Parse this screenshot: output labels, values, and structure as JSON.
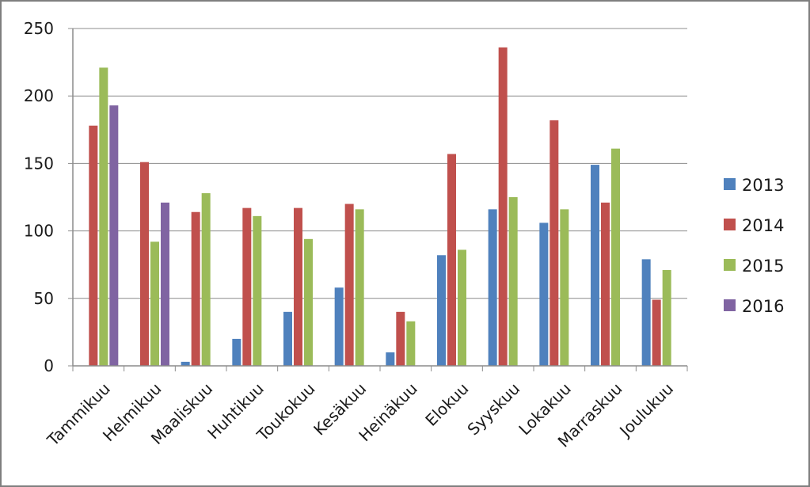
{
  "chart_data": {
    "type": "bar",
    "categories": [
      "Tammikuu",
      "Helmikuu",
      "Maaliskuu",
      "Huhtikuu",
      "Toukokuu",
      "Kesäkuu",
      "Heinäkuu",
      "Elokuu",
      "Syyskuu",
      "Lokakuu",
      "Marraskuu",
      "Joulukuu"
    ],
    "series": [
      {
        "name": "2013",
        "color": "#4f81bd",
        "values": [
          null,
          null,
          3,
          20,
          40,
          58,
          10,
          82,
          116,
          106,
          149,
          79
        ]
      },
      {
        "name": "2014",
        "color": "#c0504d",
        "values": [
          178,
          151,
          114,
          117,
          117,
          120,
          40,
          157,
          236,
          182,
          121,
          49
        ]
      },
      {
        "name": "2015",
        "color": "#9bbb59",
        "values": [
          221,
          92,
          128,
          111,
          94,
          116,
          33,
          86,
          125,
          116,
          161,
          71
        ]
      },
      {
        "name": "2016",
        "color": "#8064a2",
        "values": [
          193,
          121,
          null,
          null,
          null,
          null,
          null,
          null,
          null,
          null,
          null,
          null
        ]
      }
    ],
    "y_ticks": [
      "0",
      "50",
      "100",
      "150",
      "200",
      "250"
    ],
    "ylim": [
      0,
      250
    ],
    "grid": true,
    "legend_position": "right",
    "title": "",
    "xlabel": "",
    "ylabel": ""
  }
}
